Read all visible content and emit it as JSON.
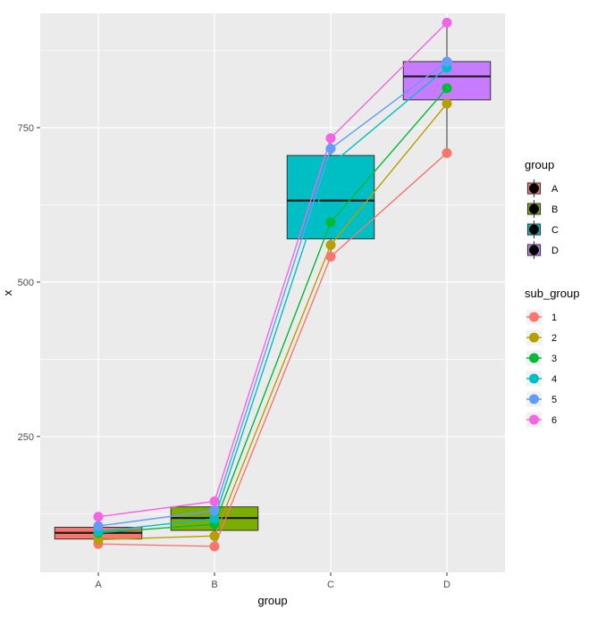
{
  "chart_data": {
    "type": "boxplot_with_lines",
    "title": "",
    "xlabel": "group",
    "ylabel": "x",
    "categories": [
      "A",
      "B",
      "C",
      "D"
    ],
    "ylim": [
      30,
      935
    ],
    "yticks": [
      250,
      500,
      750
    ],
    "ytick_labels": [
      "250",
      "500",
      "750"
    ],
    "grid": true,
    "boxes": [
      {
        "group": "A",
        "q1": 84,
        "median": 94,
        "q3": 103,
        "whisker_low": 76,
        "whisker_high": 120,
        "color": "#F8766D"
      },
      {
        "group": "B",
        "q1": 98,
        "median": 118,
        "q3": 136,
        "whisker_low": 72,
        "whisker_high": 145,
        "color": "#7CAE00"
      },
      {
        "group": "C",
        "q1": 570,
        "median": 632,
        "q3": 705,
        "whisker_low": 541,
        "whisker_high": 733,
        "color": "#00BFC4"
      },
      {
        "group": "D",
        "q1": 795,
        "median": 833,
        "q3": 857,
        "whisker_low": 709,
        "whisker_high": 920,
        "color": "#C77CFF"
      }
    ],
    "series": [
      {
        "name": "1",
        "color": "#F8766D",
        "values": [
          76,
          72,
          541,
          709
        ]
      },
      {
        "name": "2",
        "color": "#B79F00",
        "values": [
          83,
          89,
          560,
          789
        ]
      },
      {
        "name": "3",
        "color": "#00BA38",
        "values": [
          94,
          108,
          597,
          814
        ]
      },
      {
        "name": "4",
        "color": "#00BFC4",
        "values": [
          96,
          117,
          690,
          847
        ]
      },
      {
        "name": "5",
        "color": "#619CFF",
        "values": [
          105,
          130,
          716,
          857
        ]
      },
      {
        "name": "6",
        "color": "#F564E3",
        "values": [
          120,
          145,
          733,
          920
        ]
      }
    ],
    "legend_group": {
      "title": "group",
      "entries": [
        {
          "label": "A",
          "color": "#F8766D"
        },
        {
          "label": "B",
          "color": "#7CAE00"
        },
        {
          "label": "C",
          "color": "#00BFC4"
        },
        {
          "label": "D",
          "color": "#C77CFF"
        }
      ]
    },
    "legend_sub_group": {
      "title": "sub_group",
      "entries": [
        {
          "label": "1",
          "color": "#F8766D"
        },
        {
          "label": "2",
          "color": "#B79F00"
        },
        {
          "label": "3",
          "color": "#00BA38"
        },
        {
          "label": "4",
          "color": "#00BFC4"
        },
        {
          "label": "5",
          "color": "#619CFF"
        },
        {
          "label": "6",
          "color": "#F564E3"
        }
      ]
    },
    "legend_placement": "right",
    "panel_background": "#EBEBEB",
    "grid_color": "#FFFFFF"
  }
}
